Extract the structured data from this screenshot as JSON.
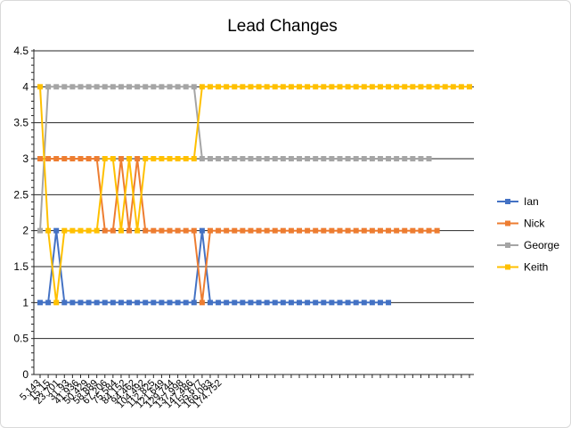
{
  "chart_data": {
    "type": "line",
    "title": "Lead Changes",
    "xlabel": "",
    "ylabel": "",
    "ylim": [
      0,
      4.5
    ],
    "y_ticks": [
      "0",
      "0.5",
      "1",
      "1.5",
      "2",
      "2.5",
      "3",
      "3.5",
      "4",
      "4.5"
    ],
    "x_tick_labels": [
      "5.143",
      "15.15",
      "23.701",
      "31.93",
      "41.936",
      "50.429",
      "58.889",
      "67.206",
      "75.584",
      "84.152",
      "94.462",
      "104.492",
      "112.825",
      "121.649",
      "129.744",
      "137.998",
      "147.486",
      "155.677",
      "166.083",
      "174.752"
    ],
    "grid": "horizontal",
    "legend_position": "right",
    "series": [
      {
        "name": "Ian",
        "color": "#4472C4",
        "values": [
          1,
          1,
          2,
          1,
          1,
          1,
          1,
          1,
          1,
          1,
          1,
          1,
          1,
          1,
          1,
          1,
          1,
          1,
          1,
          1,
          2,
          1,
          1,
          1,
          1,
          1,
          1,
          1,
          1,
          1,
          1,
          1,
          1,
          1,
          1,
          1,
          1,
          1,
          1,
          1,
          1,
          1,
          1,
          1
        ]
      },
      {
        "name": "Nick",
        "color": "#ED7D31",
        "values": [
          3,
          3,
          3,
          3,
          3,
          3,
          3,
          3,
          2,
          2,
          3,
          2,
          3,
          2,
          2,
          2,
          2,
          2,
          2,
          2,
          1,
          2,
          2,
          2,
          2,
          2,
          2,
          2,
          2,
          2,
          2,
          2,
          2,
          2,
          2,
          2,
          2,
          2,
          2,
          2,
          2,
          2,
          2,
          2,
          2,
          2,
          2,
          2,
          2,
          2
        ]
      },
      {
        "name": "George",
        "color": "#A5A5A5",
        "values": [
          2,
          4,
          4,
          4,
          4,
          4,
          4,
          4,
          4,
          4,
          4,
          4,
          4,
          4,
          4,
          4,
          4,
          4,
          4,
          4,
          3,
          3,
          3,
          3,
          3,
          3,
          3,
          3,
          3,
          3,
          3,
          3,
          3,
          3,
          3,
          3,
          3,
          3,
          3,
          3,
          3,
          3,
          3,
          3,
          3,
          3,
          3,
          3,
          3
        ]
      },
      {
        "name": "Keith",
        "color": "#FFC000",
        "values": [
          4,
          2,
          1,
          2,
          2,
          2,
          2,
          2,
          3,
          3,
          2,
          3,
          2,
          3,
          3,
          3,
          3,
          3,
          3,
          3,
          4,
          4,
          4,
          4,
          4,
          4,
          4,
          4,
          4,
          4,
          4,
          4,
          4,
          4,
          4,
          4,
          4,
          4,
          4,
          4,
          4,
          4,
          4,
          4,
          4,
          4,
          4,
          4,
          4,
          4,
          4,
          4,
          4,
          4
        ]
      }
    ]
  }
}
